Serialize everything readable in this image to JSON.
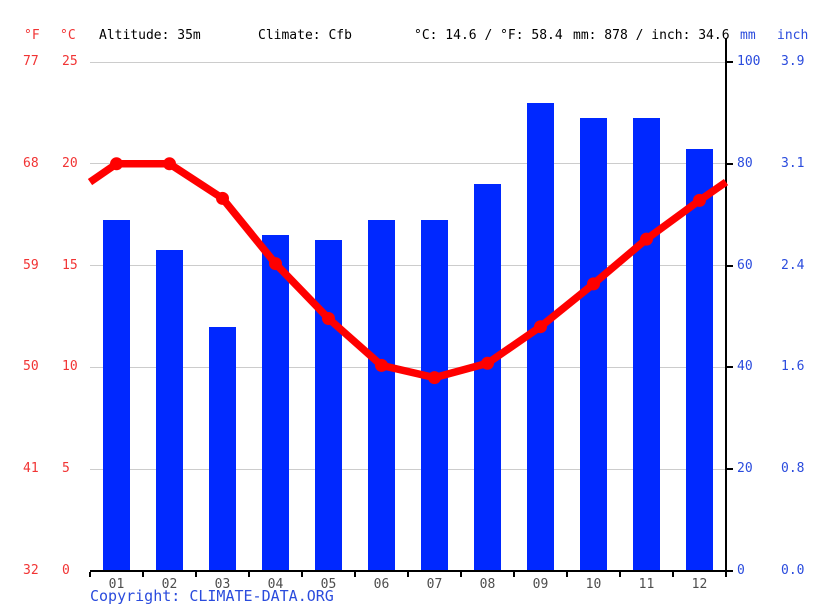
{
  "header": {
    "f_label": "°F",
    "c_label": "°C",
    "altitude": "Altitude: 35m",
    "climate": "Climate: Cfb",
    "temp_summary": "°C: 14.6 / °F: 58.4",
    "precip_summary": "mm: 878 / inch: 34.6",
    "mm_label": "mm",
    "inch_label": "inch"
  },
  "axes": {
    "left_f_ticks": [
      "77",
      "68",
      "59",
      "50",
      "41",
      "32"
    ],
    "left_c_ticks": [
      "25",
      "20",
      "15",
      "10",
      "5",
      "0"
    ],
    "right_mm_ticks": [
      "100",
      "80",
      "60",
      "40",
      "20",
      "0"
    ],
    "right_inch_ticks": [
      "3.9",
      "3.1",
      "2.4",
      "1.6",
      "0.8",
      "0.0"
    ]
  },
  "chart_data": {
    "type": "bar+line climate chart",
    "categories": [
      "01",
      "02",
      "03",
      "04",
      "05",
      "06",
      "07",
      "08",
      "09",
      "10",
      "11",
      "12"
    ],
    "series": [
      {
        "name": "precipitation_mm",
        "type": "bar",
        "values": [
          69,
          63,
          48,
          66,
          65,
          69,
          69,
          76,
          92,
          89,
          89,
          83
        ]
      },
      {
        "name": "temperature_c",
        "type": "line",
        "values": [
          20.0,
          20.0,
          18.3,
          15.1,
          12.4,
          10.1,
          9.5,
          10.2,
          12.0,
          14.1,
          16.3,
          18.2
        ],
        "edge_value_left": 19.1,
        "edge_value_right": 19.1
      }
    ],
    "temp_axis_range_c": [
      0,
      25
    ],
    "temp_axis_range_f": [
      32,
      77
    ],
    "precip_axis_range_mm": [
      0,
      100
    ],
    "precip_axis_range_inch": [
      0.0,
      3.9
    ],
    "grid": true,
    "legend_position": "none",
    "annual_mean_temp_c": 14.6,
    "annual_mean_temp_f": 58.4,
    "annual_precip_mm": 878,
    "annual_precip_inch": 34.6
  },
  "footer": {
    "copyright_prefix": "Copyright:",
    "copyright_link": "CLIMATE-DATA.ORG"
  },
  "colors": {
    "bar_blue": "#0028ff",
    "line_red": "#ff0000",
    "text_red": "#f13434",
    "text_blue": "#2a4bdd",
    "grid_gray": "#cccccc",
    "axis_black": "#000000",
    "month_gray": "#4d4d4d"
  }
}
